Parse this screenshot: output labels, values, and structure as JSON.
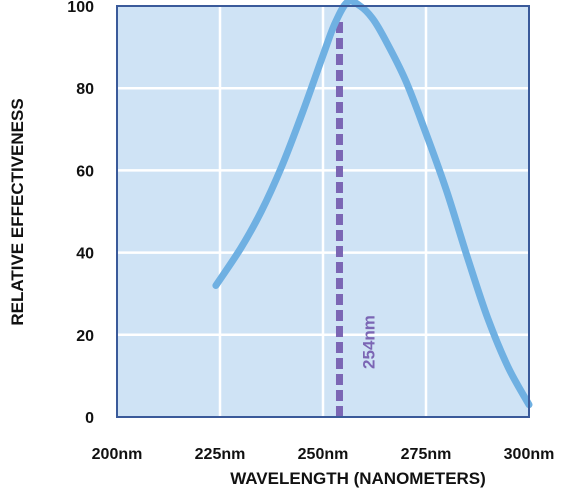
{
  "chart_data": {
    "type": "line",
    "title": "",
    "xlabel": "WAVELENGTH (NANOMETERS)",
    "ylabel": "RELATIVE EFFECTIVENESS",
    "xlim": [
      200,
      300
    ],
    "ylim": [
      0,
      100
    ],
    "x_ticks": [
      {
        "value": 200,
        "label": "200nm"
      },
      {
        "value": 225,
        "label": "225nm"
      },
      {
        "value": 250,
        "label": "250nm"
      },
      {
        "value": 275,
        "label": "275nm"
      },
      {
        "value": 300,
        "label": "300nm"
      }
    ],
    "y_ticks": [
      {
        "value": 0,
        "label": "0"
      },
      {
        "value": 20,
        "label": "20"
      },
      {
        "value": 40,
        "label": "40"
      },
      {
        "value": 60,
        "label": "60"
      },
      {
        "value": 80,
        "label": "80"
      },
      {
        "value": 100,
        "label": "100"
      }
    ],
    "grid": true,
    "series": [
      {
        "x": [
          224,
          230,
          235,
          240,
          245,
          250,
          253,
          256,
          259,
          262,
          265,
          270,
          275,
          280,
          285,
          290,
          295,
          300
        ],
        "y": [
          32,
          41,
          50,
          61,
          74,
          88,
          96,
          101,
          100,
          97,
          92,
          82,
          69,
          55,
          39,
          24,
          12,
          3
        ]
      }
    ],
    "annotations": [
      {
        "type": "vertical-line",
        "x": 254,
        "label": "254nm"
      }
    ]
  },
  "colors": {
    "plot_background": "#cfe3f5",
    "grid": "#ffffff",
    "frame": "#3a5a9a",
    "curve": "#6fb0e2",
    "marker_line": "#7b66b4"
  }
}
